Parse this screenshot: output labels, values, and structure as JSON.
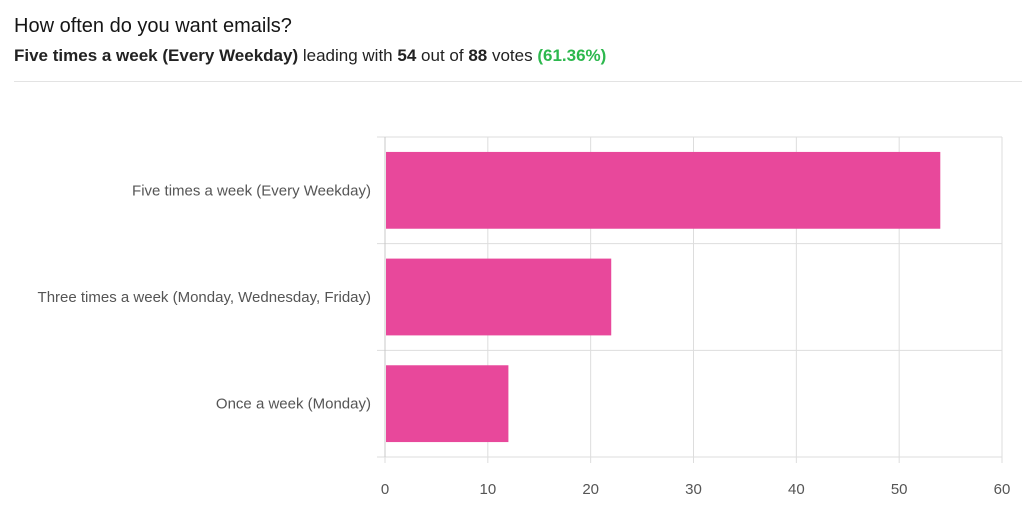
{
  "poll": {
    "question": "How often do you want emails?",
    "leader": "Five times a week (Every Weekday)",
    "leading_with": "leading with",
    "votes_leader": "54",
    "out_of": "out of",
    "votes_total": "88",
    "votes_word": "votes",
    "percent_text": "(61.36%)"
  },
  "colors": {
    "bar": "#E8489B",
    "percent": "#2DB84E",
    "grid": "#dddddd",
    "axis": "#c8c8c8",
    "text": "#555555"
  },
  "chart_data": {
    "type": "bar",
    "orientation": "horizontal",
    "title": "How often do you want emails?",
    "xlabel": "",
    "ylabel": "",
    "categories": [
      "Five times a week (Every Weekday)",
      "Three times a week (Monday, Wednesday, Friday)",
      "Once a week (Monday)"
    ],
    "values": [
      54,
      22,
      12
    ],
    "xlim": [
      0,
      60
    ],
    "ticks": [
      0,
      10,
      20,
      30,
      40,
      50,
      60
    ],
    "grid": true
  }
}
